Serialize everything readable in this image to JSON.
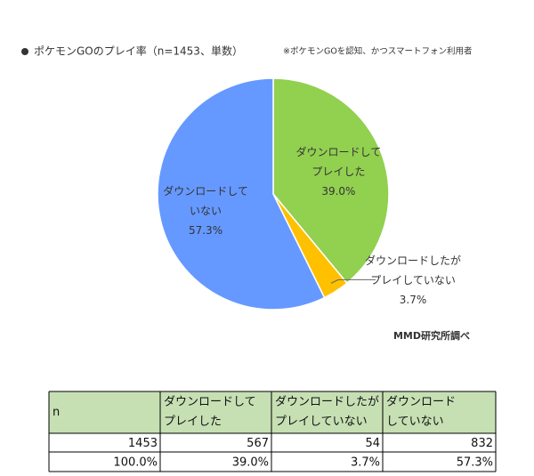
{
  "chart_data": {
    "type": "pie",
    "title": "ポケモンGOのプレイ率（n=1453、単数）",
    "subtitle": "※ポケモンGOを認知、かつスマートフォン利用者",
    "categories": [
      [
        "ダウンロードして",
        "プレイした"
      ],
      [
        "ダウンロードしたが",
        "プレイしていない"
      ],
      [
        "ダウンロードして",
        "いない"
      ]
    ],
    "values": [
      39.0,
      3.7,
      57.3
    ],
    "value_labels": [
      "39.0%",
      "3.7%",
      "57.3%"
    ],
    "colors": [
      "#92d050",
      "#ffc000",
      "#6699ff"
    ],
    "source": "MMD研究所調べ"
  },
  "table": {
    "header": [
      [
        "n"
      ],
      [
        "ダウンロードして",
        "プレイした"
      ],
      [
        "ダウンロードしたが",
        "プレイしていない"
      ],
      [
        "ダウンロード",
        "していない"
      ]
    ],
    "rows": [
      [
        "1453",
        "567",
        "54",
        "832"
      ],
      [
        "100.0%",
        "39.0%",
        "3.7%",
        "57.3%"
      ]
    ]
  }
}
